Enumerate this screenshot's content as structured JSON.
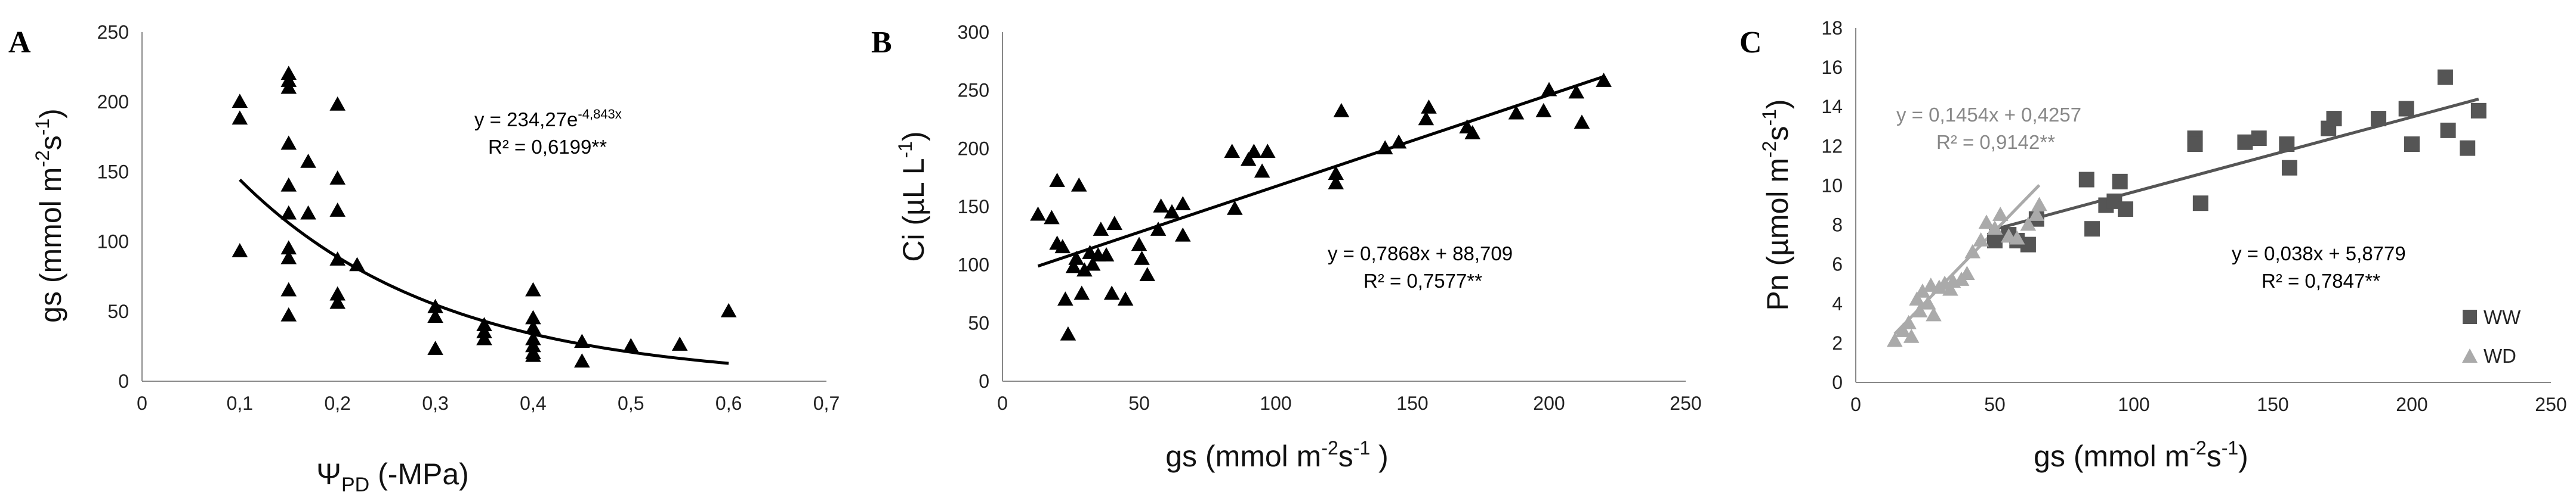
{
  "chart_data": [
    {
      "panel": "A",
      "type": "scatter",
      "xlabel": "Ψ",
      "xlabel_sub": "PD",
      "xlabel_tail": " (-MPa)",
      "ylabel": "gs (mmol m",
      "ylabel_sup1": "-2",
      "ylabel_mid": "s",
      "ylabel_sup2": "-1",
      "ylabel_tail": ")",
      "xlim": [
        0,
        0.7
      ],
      "ylim": [
        0,
        250
      ],
      "xticks": [
        0,
        0.1,
        0.2,
        0.3,
        0.4,
        0.5,
        0.6,
        0.7
      ],
      "yticks": [
        0,
        50,
        100,
        150,
        200,
        250
      ],
      "color": "#000000",
      "marker": "triangle",
      "points": [
        [
          0.1,
          200
        ],
        [
          0.1,
          188
        ],
        [
          0.1,
          93
        ],
        [
          0.15,
          220
        ],
        [
          0.15,
          215
        ],
        [
          0.15,
          210
        ],
        [
          0.15,
          170
        ],
        [
          0.15,
          140
        ],
        [
          0.15,
          120
        ],
        [
          0.15,
          95
        ],
        [
          0.15,
          88
        ],
        [
          0.15,
          65
        ],
        [
          0.15,
          47
        ],
        [
          0.17,
          157
        ],
        [
          0.17,
          120
        ],
        [
          0.2,
          198
        ],
        [
          0.2,
          145
        ],
        [
          0.2,
          122
        ],
        [
          0.2,
          87
        ],
        [
          0.2,
          62
        ],
        [
          0.2,
          56
        ],
        [
          0.22,
          83
        ],
        [
          0.3,
          53
        ],
        [
          0.3,
          46
        ],
        [
          0.3,
          23
        ],
        [
          0.35,
          40
        ],
        [
          0.35,
          35
        ],
        [
          0.35,
          30
        ],
        [
          0.4,
          65
        ],
        [
          0.4,
          45
        ],
        [
          0.4,
          38
        ],
        [
          0.4,
          30
        ],
        [
          0.4,
          25
        ],
        [
          0.4,
          20
        ],
        [
          0.4,
          18
        ],
        [
          0.45,
          28
        ],
        [
          0.45,
          14
        ],
        [
          0.5,
          25
        ],
        [
          0.55,
          26
        ],
        [
          0.6,
          50
        ]
      ],
      "fit": {
        "kind": "exp",
        "a": 234.27,
        "b": -4.843,
        "x_range": [
          0.1,
          0.6
        ]
      },
      "equation_prefix": "y = 234,27e",
      "equation_exp": "-4,843x",
      "r2": "R² = 0,6199**",
      "annotation_color": "#000000"
    },
    {
      "panel": "B",
      "type": "scatter",
      "xlabel": "gs (mmol m",
      "xlabel_sup1": "-2",
      "xlabel_mid": "s",
      "xlabel_sup2": "-1",
      "xlabel_tail": " )",
      "ylabel": "Ci (µL L",
      "ylabel_sup": "-1",
      "ylabel_tail": ")",
      "xlim": [
        0,
        250
      ],
      "ylim": [
        0,
        300
      ],
      "xticks": [
        0,
        50,
        100,
        150,
        200,
        250
      ],
      "yticks": [
        0,
        50,
        100,
        150,
        200,
        250,
        300
      ],
      "color": "#000000",
      "marker": "triangle",
      "points": [
        [
          13,
          143
        ],
        [
          18,
          140
        ],
        [
          20,
          172
        ],
        [
          20,
          118
        ],
        [
          22,
          115
        ],
        [
          23,
          70
        ],
        [
          24,
          40
        ],
        [
          26,
          98
        ],
        [
          27,
          105
        ],
        [
          28,
          168
        ],
        [
          29,
          75
        ],
        [
          30,
          95
        ],
        [
          32,
          110
        ],
        [
          33,
          100
        ],
        [
          35,
          108
        ],
        [
          36,
          130
        ],
        [
          38,
          108
        ],
        [
          40,
          75
        ],
        [
          41,
          135
        ],
        [
          45,
          70
        ],
        [
          50,
          117
        ],
        [
          51,
          105
        ],
        [
          53,
          91
        ],
        [
          57,
          130
        ],
        [
          58,
          150
        ],
        [
          62,
          145
        ],
        [
          66,
          152
        ],
        [
          66,
          125
        ],
        [
          84,
          197
        ],
        [
          85,
          148
        ],
        [
          90,
          190
        ],
        [
          92,
          197
        ],
        [
          95,
          180
        ],
        [
          97,
          197
        ],
        [
          122,
          170
        ],
        [
          122,
          178
        ],
        [
          124,
          232
        ],
        [
          140,
          200
        ],
        [
          145,
          205
        ],
        [
          155,
          225
        ],
        [
          156,
          235
        ],
        [
          170,
          218
        ],
        [
          172,
          213
        ],
        [
          188,
          230
        ],
        [
          198,
          232
        ],
        [
          200,
          250
        ],
        [
          210,
          248
        ],
        [
          212,
          222
        ],
        [
          220,
          258
        ]
      ],
      "fit": {
        "kind": "linear",
        "slope": 0.7868,
        "intercept": 88.709,
        "x_range": [
          13,
          220
        ]
      },
      "equation": "y = 0,7868x + 88,709",
      "r2": "R² = 0,7577**",
      "annotation_color": "#000000"
    },
    {
      "panel": "C",
      "type": "scatter",
      "xlabel": "gs (mmol m",
      "xlabel_sup1": "-2",
      "xlabel_mid": "s",
      "xlabel_sup2": "-1",
      "xlabel_tail": ")",
      "ylabel": "Pn (µmol m",
      "ylabel_sup1": "-2",
      "ylabel_mid": "s",
      "ylabel_sup2": "-1",
      "ylabel_tail": ")",
      "xlim": [
        0,
        250
      ],
      "ylim": [
        0,
        18
      ],
      "xticks": [
        0,
        50,
        100,
        150,
        200,
        250
      ],
      "yticks": [
        0,
        2,
        4,
        6,
        8,
        10,
        12,
        14,
        16,
        18
      ],
      "legend_position": "bottom-right",
      "series": [
        {
          "name": "WW",
          "color": "#555555",
          "marker": "square",
          "points": [
            [
              50,
              7.2
            ],
            [
              55,
              7.5
            ],
            [
              58,
              7.2
            ],
            [
              62,
              7.0
            ],
            [
              65,
              8.3
            ],
            [
              83,
              10.3
            ],
            [
              85,
              7.8
            ],
            [
              90,
              9.0
            ],
            [
              93,
              9.2
            ],
            [
              95,
              10.2
            ],
            [
              97,
              8.8
            ],
            [
              122,
              12.4
            ],
            [
              122,
              12.1
            ],
            [
              124,
              9.1
            ],
            [
              140,
              12.2
            ],
            [
              145,
              12.4
            ],
            [
              155,
              12.1
            ],
            [
              156,
              10.9
            ],
            [
              170,
              12.9
            ],
            [
              172,
              13.4
            ],
            [
              188,
              13.4
            ],
            [
              198,
              13.9
            ],
            [
              200,
              12.1
            ],
            [
              212,
              15.5
            ],
            [
              213,
              12.8
            ],
            [
              220,
              11.9
            ],
            [
              224,
              13.8
            ]
          ],
          "fit": {
            "kind": "linear",
            "slope": 0.038,
            "intercept": 5.8779,
            "x_range": [
              48,
              224
            ]
          },
          "equation": "y = 0,038x + 5,8779",
          "r2": "R² = 0,7847**"
        },
        {
          "name": "WD",
          "color": "#aaaaaa",
          "marker": "triangle",
          "points": [
            [
              14,
              2.1
            ],
            [
              17,
              2.6
            ],
            [
              19,
              3.0
            ],
            [
              20,
              2.3
            ],
            [
              22,
              4.2
            ],
            [
              23,
              3.6
            ],
            [
              24,
              4.6
            ],
            [
              26,
              4.0
            ],
            [
              27,
              4.9
            ],
            [
              28,
              3.4
            ],
            [
              30,
              4.8
            ],
            [
              32,
              5.0
            ],
            [
              34,
              4.7
            ],
            [
              35,
              5.1
            ],
            [
              38,
              5.2
            ],
            [
              40,
              5.5
            ],
            [
              42,
              6.6
            ],
            [
              45,
              7.2
            ],
            [
              47,
              8.1
            ],
            [
              50,
              7.8
            ],
            [
              52,
              8.5
            ],
            [
              55,
              7.4
            ],
            [
              58,
              7.3
            ],
            [
              62,
              8.0
            ],
            [
              65,
              8.5
            ],
            [
              66,
              9.0
            ]
          ],
          "fit": {
            "kind": "linear",
            "slope": 0.1454,
            "intercept": 0.4257,
            "x_range": [
              14,
              66
            ]
          },
          "equation": "y = 0,1454x + 0,4257",
          "r2": "R² = 0,9142**"
        }
      ]
    }
  ]
}
